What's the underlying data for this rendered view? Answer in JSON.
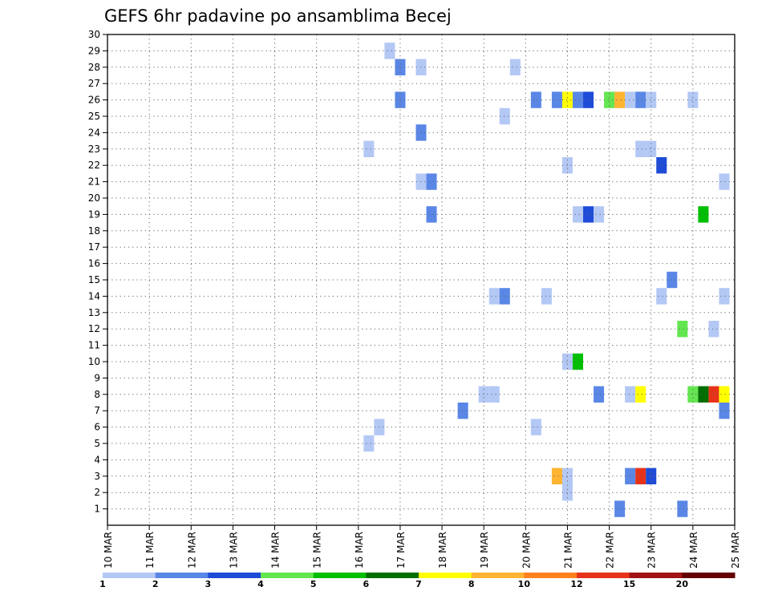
{
  "chart_data": {
    "type": "heatmap",
    "title": "GEFS 6hr padavine po ansamblima Becej",
    "x_labels": [
      "10 MAR",
      "11 MAR",
      "12 MAR",
      "13 MAR",
      "14 MAR",
      "15 MAR",
      "16 MAR",
      "17 MAR",
      "18 MAR",
      "19 MAR",
      "20 MAR",
      "21 MAR",
      "22 MAR",
      "23 MAR",
      "24 MAR",
      "25 MAR"
    ],
    "x_range": [
      0,
      60
    ],
    "y_labels": [
      "1",
      "2",
      "3",
      "4",
      "5",
      "6",
      "7",
      "8",
      "9",
      "10",
      "11",
      "12",
      "13",
      "14",
      "15",
      "16",
      "17",
      "18",
      "19",
      "20",
      "21",
      "22",
      "23",
      "24",
      "25",
      "26",
      "27",
      "28",
      "29",
      "30"
    ],
    "y_range": [
      0,
      30
    ],
    "grid": "dotted",
    "legend": {
      "position": "bottom",
      "labels": [
        "1",
        "2",
        "3",
        "4",
        "5",
        "6",
        "7",
        "8",
        "10",
        "12",
        "15",
        "20"
      ],
      "colors": [
        "#b4c8f5",
        "#5a87e6",
        "#1e4bd7",
        "#64e650",
        "#00be00",
        "#006e00",
        "#ffff00",
        "#ffb432",
        "#ff821e",
        "#e63219",
        "#a01414",
        "#640000"
      ]
    },
    "cells": [
      {
        "t": 27,
        "m": 29,
        "c": 0
      },
      {
        "t": 28,
        "m": 28,
        "c": 1
      },
      {
        "t": 30,
        "m": 28,
        "c": 0
      },
      {
        "t": 39,
        "m": 28,
        "c": 0
      },
      {
        "t": 28,
        "m": 26,
        "c": 1
      },
      {
        "t": 41,
        "m": 26,
        "c": 1
      },
      {
        "t": 43,
        "m": 26,
        "c": 1
      },
      {
        "t": 44,
        "m": 26,
        "c": 6
      },
      {
        "t": 45,
        "m": 26,
        "c": 1
      },
      {
        "t": 46,
        "m": 26,
        "c": 2
      },
      {
        "t": 48,
        "m": 26,
        "c": 3
      },
      {
        "t": 49,
        "m": 26,
        "c": 7
      },
      {
        "t": 50,
        "m": 26,
        "c": 0
      },
      {
        "t": 51,
        "m": 26,
        "c": 1
      },
      {
        "t": 52,
        "m": 26,
        "c": 0
      },
      {
        "t": 56,
        "m": 26,
        "c": 0
      },
      {
        "t": 38,
        "m": 25,
        "c": 0
      },
      {
        "t": 30,
        "m": 24,
        "c": 1
      },
      {
        "t": 25,
        "m": 23,
        "c": 0
      },
      {
        "t": 51,
        "m": 23,
        "c": 0
      },
      {
        "t": 52,
        "m": 23,
        "c": 0
      },
      {
        "t": 44,
        "m": 22,
        "c": 0
      },
      {
        "t": 53,
        "m": 22,
        "c": 2
      },
      {
        "t": 30,
        "m": 21,
        "c": 0
      },
      {
        "t": 31,
        "m": 21,
        "c": 1
      },
      {
        "t": 59,
        "m": 21,
        "c": 0
      },
      {
        "t": 31,
        "m": 19,
        "c": 1
      },
      {
        "t": 45,
        "m": 19,
        "c": 0
      },
      {
        "t": 46,
        "m": 19,
        "c": 2
      },
      {
        "t": 47,
        "m": 19,
        "c": 0
      },
      {
        "t": 57,
        "m": 19,
        "c": 4
      },
      {
        "t": 54,
        "m": 15,
        "c": 1
      },
      {
        "t": 37,
        "m": 14,
        "c": 0
      },
      {
        "t": 38,
        "m": 14,
        "c": 1
      },
      {
        "t": 42,
        "m": 14,
        "c": 0
      },
      {
        "t": 53,
        "m": 14,
        "c": 0
      },
      {
        "t": 59,
        "m": 14,
        "c": 0
      },
      {
        "t": 55,
        "m": 12,
        "c": 3
      },
      {
        "t": 58,
        "m": 12,
        "c": 0
      },
      {
        "t": 44,
        "m": 10,
        "c": 0
      },
      {
        "t": 45,
        "m": 10,
        "c": 4
      },
      {
        "t": 36,
        "m": 8,
        "c": 0
      },
      {
        "t": 37,
        "m": 8,
        "c": 0
      },
      {
        "t": 47,
        "m": 8,
        "c": 1
      },
      {
        "t": 50,
        "m": 8,
        "c": 0
      },
      {
        "t": 51,
        "m": 8,
        "c": 6
      },
      {
        "t": 56,
        "m": 8,
        "c": 3
      },
      {
        "t": 57,
        "m": 8,
        "c": 5
      },
      {
        "t": 58,
        "m": 8,
        "c": 9
      },
      {
        "t": 59,
        "m": 8,
        "c": 6
      },
      {
        "t": 34,
        "m": 7,
        "c": 1
      },
      {
        "t": 59,
        "m": 7,
        "c": 1
      },
      {
        "t": 26,
        "m": 6,
        "c": 0
      },
      {
        "t": 41,
        "m": 6,
        "c": 0
      },
      {
        "t": 25,
        "m": 5,
        "c": 0
      },
      {
        "t": 43,
        "m": 3,
        "c": 7
      },
      {
        "t": 44,
        "m": 3,
        "c": 0
      },
      {
        "t": 50,
        "m": 3,
        "c": 1
      },
      {
        "t": 51,
        "m": 3,
        "c": 9
      },
      {
        "t": 52,
        "m": 3,
        "c": 2
      },
      {
        "t": 44,
        "m": 2,
        "c": 0
      },
      {
        "t": 49,
        "m": 1,
        "c": 1
      },
      {
        "t": 55,
        "m": 1,
        "c": 1
      }
    ]
  }
}
